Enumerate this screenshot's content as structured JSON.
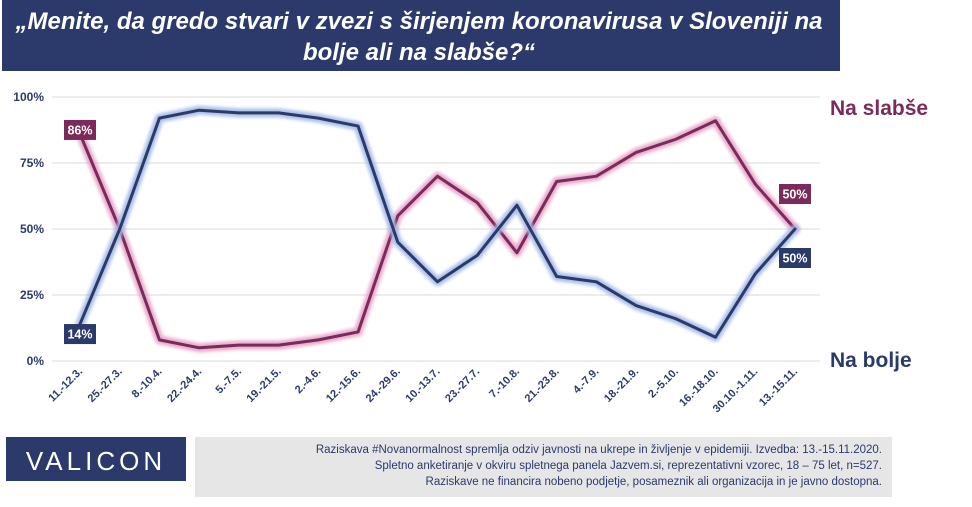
{
  "title": "„Menite, da gredo stvari  v zvezi s širjenjem koronavirusa v Sloveniji na bolje ali na slabše?“",
  "logo": "VALICON",
  "footnote": [
    "Raziskava #Novanormalnost spremlja  odziv javnosti  na ukrepe in življenje v epidemiji.  Izvedba: 13.-15.11.2020.",
    "Spletno anketiranje v okviru  spletnega panela Jazvem.si, reprezentativni vzorec, 18 – 75 let, n=527.",
    "Raziskave ne financira nobeno podjetje, posameznik ali organizacija in je javno dostopna."
  ],
  "colors": {
    "worse": "#7b2a5a",
    "worse_glow": "#e6a3c8",
    "better": "#2b3a6b",
    "better_glow": "#a3b9e6",
    "axis_text": "#2b3a6b"
  },
  "chart_data": {
    "type": "line",
    "x": [
      "11.-12.3.",
      "25.-27.3.",
      "8.-10.4.",
      "22.-24.4.",
      "5.-7.5.",
      "19.-21.5.",
      "2.-4.6.",
      "12.-15.6.",
      "24.-29.6.",
      "10.-13.7.",
      "23.-27.7.",
      "7.-10.8.",
      "21.-23.8.",
      "4.-7.9.",
      "18.-21.9.",
      "2.-5.10.",
      "16.-18.10.",
      "30.10.-1.11.",
      "13.-15.11."
    ],
    "series": [
      {
        "name": "Na slabše",
        "values": [
          86,
          50,
          8,
          5,
          6,
          6,
          8,
          11,
          55,
          70,
          60,
          41,
          68,
          70,
          79,
          84,
          91,
          67,
          50
        ],
        "end_label": "50%",
        "start_label": "86%"
      },
      {
        "name": "Na bolje",
        "values": [
          14,
          50,
          92,
          95,
          94,
          94,
          92,
          89,
          45,
          30,
          40,
          59,
          32,
          30,
          21,
          16,
          9,
          33,
          50
        ],
        "end_label": "50%",
        "start_label": "14%"
      }
    ],
    "y_ticks": [
      "0%",
      "25%",
      "50%",
      "75%",
      "100%"
    ],
    "ylim": [
      0,
      100
    ],
    "grid": true
  }
}
